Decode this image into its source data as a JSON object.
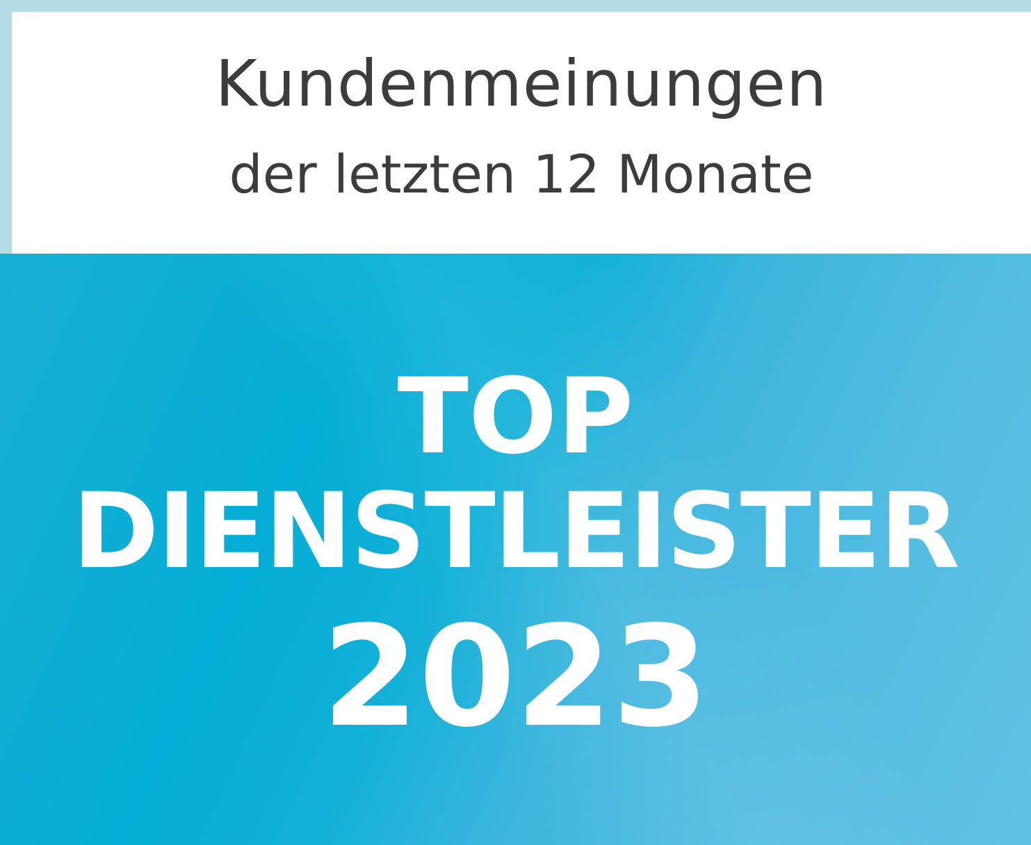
{
  "header": {
    "line1": "Kundenmeinungen",
    "line2": "der letzten 12 Monate"
  },
  "badge": {
    "line1": "TOP",
    "line2": "DIENSTLEISTER",
    "year": "2023"
  },
  "colors": {
    "border": "#b3dce6",
    "panel": "#05aed6",
    "text_dark": "#3c3c3c"
  }
}
